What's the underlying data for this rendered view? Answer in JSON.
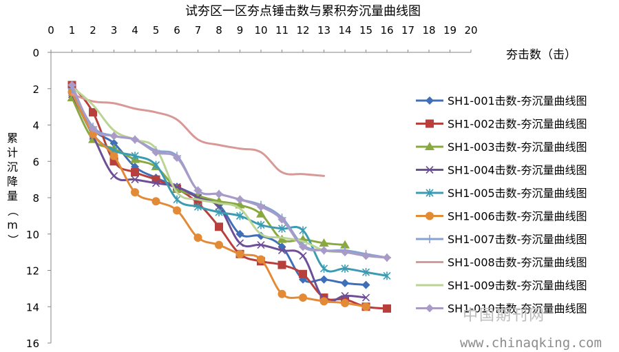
{
  "chart_data": {
    "type": "line",
    "title": "试夯区一区夯点锤击数与累积夯沉量曲线图",
    "xlabel": "夯击数（击）",
    "ylabel": "累计沉降量（m）",
    "xlim": [
      0,
      20
    ],
    "ylim": [
      0,
      16
    ],
    "y_inverted": true,
    "x_axis_position": "top",
    "x_ticks": [
      "0",
      "1",
      "2",
      "3",
      "4",
      "5",
      "6",
      "7",
      "8",
      "9",
      "10",
      "11",
      "12",
      "13",
      "14",
      "15",
      "16",
      "17",
      "18",
      "19",
      "20"
    ],
    "y_ticks": [
      "0",
      "2",
      "4",
      "6",
      "8",
      "10",
      "12",
      "14",
      "16"
    ],
    "grid": false,
    "legend_position": "right",
    "series": [
      {
        "name": "SH1-001击数-夯沉量曲线图",
        "color": "#3F6FB6",
        "marker": "diamond",
        "x": [
          1,
          2,
          3,
          4,
          5,
          6,
          7,
          8,
          9,
          10,
          11,
          12,
          13,
          14,
          15
        ],
        "y": [
          2.1,
          4.2,
          5.0,
          6.3,
          6.9,
          7.4,
          7.9,
          8.4,
          10.0,
          10.1,
          10.7,
          12.5,
          12.5,
          12.7,
          12.8
        ]
      },
      {
        "name": "SH1-002击数-夯沉量曲线图",
        "color": "#B7403C",
        "marker": "square",
        "x": [
          1,
          2,
          3,
          4,
          5,
          6,
          7,
          8,
          9,
          10,
          11,
          12,
          13,
          14,
          15,
          16
        ],
        "y": [
          1.8,
          3.3,
          6.0,
          6.6,
          7.0,
          7.5,
          8.3,
          9.6,
          11.1,
          11.5,
          11.7,
          12.2,
          13.5,
          13.6,
          14.0,
          14.1
        ]
      },
      {
        "name": "SH1-003击数-夯沉量曲线图",
        "color": "#89A83F",
        "marker": "triangle",
        "x": [
          1,
          2,
          3,
          4,
          5,
          6,
          7,
          8,
          9,
          10,
          11,
          12,
          13,
          14
        ],
        "y": [
          2.5,
          4.8,
          5.3,
          5.9,
          6.3,
          7.5,
          7.9,
          8.2,
          8.4,
          8.9,
          10.3,
          10.3,
          10.5,
          10.6
        ]
      },
      {
        "name": "SH1-004击数-夯沉量曲线图",
        "color": "#6C4F96",
        "marker": "x",
        "x": [
          1,
          2,
          3,
          4,
          5,
          6,
          7,
          8,
          9,
          10,
          11,
          12,
          13,
          14,
          15
        ],
        "y": [
          2.3,
          4.6,
          6.8,
          7.0,
          7.2,
          7.4,
          8.0,
          8.5,
          10.5,
          10.6,
          10.9,
          11.2,
          13.6,
          13.4,
          13.5
        ]
      },
      {
        "name": "SH1-005击数-夯沉量曲线图",
        "color": "#3A9BB2",
        "marker": "star",
        "x": [
          1,
          2,
          3,
          4,
          5,
          6,
          7,
          8,
          9,
          10,
          11,
          12,
          13,
          14,
          15,
          16
        ],
        "y": [
          2.2,
          4.5,
          5.4,
          5.7,
          6.2,
          8.1,
          8.5,
          8.8,
          9.0,
          9.5,
          9.7,
          9.8,
          11.9,
          11.9,
          12.1,
          12.3
        ]
      },
      {
        "name": "SH1-006击数-夯沉量曲线图",
        "color": "#E28A35",
        "marker": "circle",
        "x": [
          1,
          2,
          3,
          4,
          5,
          6,
          7,
          8,
          9,
          10,
          11,
          12,
          13,
          14,
          15
        ],
        "y": [
          2.2,
          4.5,
          5.7,
          7.7,
          8.2,
          8.7,
          10.2,
          10.6,
          11.1,
          11.4,
          13.3,
          13.5,
          13.7,
          13.8,
          14.0
        ]
      },
      {
        "name": "SH1-007击数-夯沉量曲线图",
        "color": "#87A1D2",
        "marker": "plus",
        "x": [
          1,
          2,
          3,
          4,
          5,
          6,
          7,
          8,
          9,
          10,
          11,
          12,
          13,
          14,
          15,
          16
        ],
        "y": [
          2.0,
          4.1,
          4.6,
          4.8,
          5.4,
          5.7,
          7.6,
          7.8,
          8.1,
          8.4,
          9.1,
          10.6,
          10.9,
          10.9,
          11.1,
          11.3
        ]
      },
      {
        "name": "SH1-008击数-夯沉量曲线图",
        "color": "#D89896",
        "marker": "none",
        "x": [
          1,
          2,
          3,
          4,
          5,
          6,
          7,
          8,
          9,
          10,
          11,
          12,
          13
        ],
        "y": [
          2.3,
          2.7,
          2.8,
          3.1,
          3.3,
          3.7,
          4.8,
          5.1,
          5.3,
          5.5,
          6.6,
          6.7,
          6.8
        ]
      },
      {
        "name": "SH1-009击数-夯沉量曲线图",
        "color": "#BBD494",
        "marker": "none",
        "x": [
          1,
          2,
          3,
          4,
          5,
          6,
          7,
          8,
          9,
          10,
          11,
          12,
          13,
          14,
          15,
          16
        ],
        "y": [
          1.9,
          2.9,
          4.3,
          4.8,
          5.3,
          7.7,
          8.1,
          8.3,
          8.6,
          10.0,
          10.2,
          10.4,
          10.9,
          11.0,
          11.2,
          11.3
        ]
      },
      {
        "name": "SH1-010击数-夯沉量曲线图",
        "color": "#A99BC7",
        "marker": "diamond",
        "x": [
          1,
          2,
          3,
          4,
          5,
          6,
          7,
          8,
          9,
          10,
          11,
          12,
          13,
          14,
          15,
          16
        ],
        "y": [
          1.8,
          4.2,
          4.6,
          4.8,
          5.5,
          5.8,
          7.6,
          7.8,
          8.1,
          8.5,
          9.2,
          10.7,
          10.9,
          11.0,
          11.2,
          11.3
        ]
      }
    ]
  },
  "watermark": {
    "cn": "中国期刊网",
    "url": "www.chinaqking.com"
  }
}
